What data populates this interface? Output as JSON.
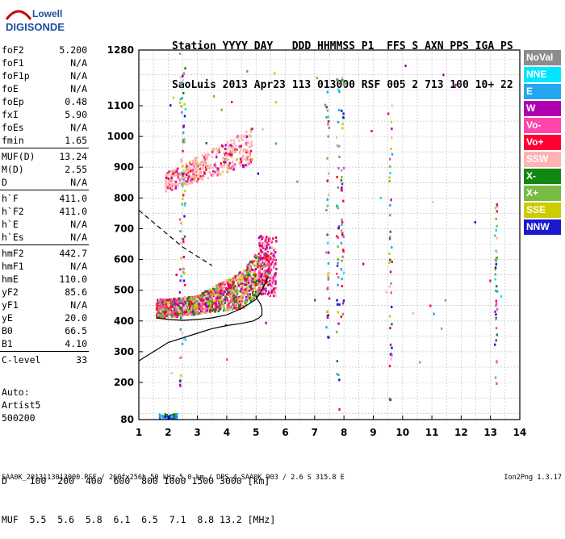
{
  "logo": {
    "line1": "Lowell",
    "line2": "DIGISONDE"
  },
  "header": {
    "line1": "Station YYYY DAY   DDD HHMMSS P1  FFS S AXN PPS IGA PS",
    "line2": "SaoLuis 2013 Apr23 113 013000 RSF 005 2 713 100 10+ 22"
  },
  "params": [
    {
      "label": "foF2",
      "value": "5.200"
    },
    {
      "label": "foF1",
      "value": "N/A"
    },
    {
      "label": "foF1p",
      "value": "N/A"
    },
    {
      "label": "foE",
      "value": "N/A"
    },
    {
      "label": "foEp",
      "value": "0.48"
    },
    {
      "label": "fxI",
      "value": "5.90"
    },
    {
      "label": "foEs",
      "value": "N/A"
    },
    {
      "label": "fmin",
      "value": "1.65"
    },
    {
      "label": "MUF(D)",
      "value": "13.24"
    },
    {
      "label": "M(D)",
      "value": "2.55"
    },
    {
      "label": "D",
      "value": "N/A"
    },
    {
      "label": "h`F",
      "value": "411.0"
    },
    {
      "label": "h`F2",
      "value": "411.0"
    },
    {
      "label": "h`E",
      "value": "N/A"
    },
    {
      "label": "h`Es",
      "value": "N/A"
    },
    {
      "label": "hmF2",
      "value": "442.7"
    },
    {
      "label": "hmF1",
      "value": "N/A"
    },
    {
      "label": "hmE",
      "value": "110.0"
    },
    {
      "label": "yF2",
      "value": "85.6"
    },
    {
      "label": "yF1",
      "value": "N/A"
    },
    {
      "label": "yE",
      "value": "20.0"
    },
    {
      "label": "B0",
      "value": "66.5"
    },
    {
      "label": "B1",
      "value": "4.10"
    },
    {
      "label": "C-level",
      "value": "33"
    }
  ],
  "auto": [
    "Auto:",
    "Artist5",
    "500200"
  ],
  "legend": [
    {
      "label": "NoVal",
      "color": "#8c8c8c"
    },
    {
      "label": "NNE",
      "color": "#00e6ff"
    },
    {
      "label": "E",
      "color": "#22a7f0"
    },
    {
      "label": "W",
      "color": "#b000b0"
    },
    {
      "label": "Vo-",
      "color": "#ff44aa"
    },
    {
      "label": "Vo+",
      "color": "#ff0033"
    },
    {
      "label": "SSW",
      "color": "#ffb3b3"
    },
    {
      "label": "X-",
      "color": "#118811"
    },
    {
      "label": "X+",
      "color": "#77bb44"
    },
    {
      "label": "SSE",
      "color": "#cccc00"
    },
    {
      "label": "NNW",
      "color": "#1a1acc"
    }
  ],
  "distance_table": {
    "line1": "D    100  200  400  600  800 1000 1500 3000 [km]",
    "line2": "MUF  5.5  5.6  5.8  6.1  6.5  7.1  8.8 13.2 [MHz]"
  },
  "footer": {
    "left": "SAA0K_2013113013000.RSF / 260fx256h 50 kHz 5.0 km / DPS-4 SAA0K 903 / 2.6 S 315.8 E",
    "right": "Ion2Png 1.3.17"
  },
  "chart_data": {
    "type": "scatter",
    "title": "",
    "xlabel": "",
    "ylabel": "",
    "xlim": [
      1,
      14
    ],
    "ylim": [
      80,
      1280
    ],
    "x_ticks": [
      1,
      2,
      3,
      4,
      5,
      6,
      7,
      8,
      9,
      10,
      11,
      12,
      13,
      14
    ],
    "y_ticks": [
      80,
      200,
      300,
      400,
      500,
      600,
      700,
      800,
      900,
      1000,
      1100,
      1280
    ],
    "grid": true,
    "curves": {
      "profile": {
        "x": [
          1.0,
          1.5,
          2.0,
          2.5,
          3.0,
          3.5,
          4.0,
          4.5,
          4.9,
          5.1,
          5.2,
          5.2,
          5.15,
          5.05,
          5.0
        ],
        "y": [
          270,
          300,
          330,
          345,
          360,
          375,
          385,
          392,
          400,
          410,
          420,
          440,
          455,
          470,
          480
        ]
      },
      "trace": {
        "x": [
          1.6,
          2.0,
          2.5,
          3.0,
          3.5,
          4.0,
          4.5,
          5.0,
          5.2,
          5.4
        ],
        "y": [
          410,
          405,
          402,
          405,
          410,
          420,
          440,
          470,
          500,
          540
        ]
      },
      "dashed": {
        "x": [
          1.0,
          1.5,
          2.0,
          2.5,
          3.0,
          3.5
        ],
        "y": [
          760,
          720,
          680,
          640,
          610,
          580
        ]
      }
    },
    "clusters": [
      {
        "name": "F2-trace",
        "x_range": [
          1.6,
          5.7
        ],
        "y_range": [
          400,
          560
        ]
      },
      {
        "name": "F2-multihop",
        "x_range": [
          1.8,
          4.8
        ],
        "y_range": [
          810,
          1000
        ]
      },
      {
        "name": "spur-2.5MHz",
        "x_range": [
          2.4,
          2.6
        ],
        "y_range": [
          180,
          1280
        ]
      },
      {
        "name": "spur-7.4MHz",
        "x_range": [
          7.3,
          7.5
        ],
        "y_range": [
          300,
          1180
        ]
      },
      {
        "name": "spur-7.8MHz",
        "x_range": [
          7.7,
          7.9
        ],
        "y_range": [
          80,
          1200
        ]
      }
    ]
  }
}
